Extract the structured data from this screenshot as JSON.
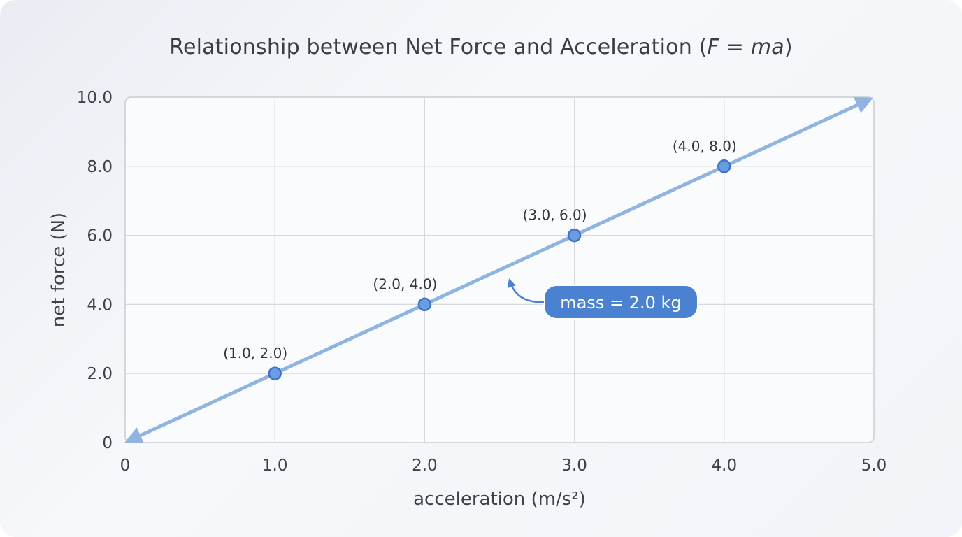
{
  "chart_data": {
    "type": "line",
    "title": {
      "prefix": "Relationship between Net Force and Acceleration (",
      "formula_lhs": "F",
      "formula_eq": " = ",
      "formula_rhs": "ma",
      "suffix": ")"
    },
    "xlabel": "acceleration (m/s²)",
    "ylabel": "net force (N)",
    "xlim": [
      0,
      5
    ],
    "ylim": [
      0,
      10
    ],
    "x_ticks": [
      {
        "v": 0,
        "label": "0"
      },
      {
        "v": 1,
        "label": "1.0"
      },
      {
        "v": 2,
        "label": "2.0"
      },
      {
        "v": 3,
        "label": "3.0"
      },
      {
        "v": 4,
        "label": "4.0"
      },
      {
        "v": 5,
        "label": "5.0"
      }
    ],
    "y_ticks": [
      {
        "v": 0,
        "label": "0"
      },
      {
        "v": 2,
        "label": "2.0"
      },
      {
        "v": 4,
        "label": "4.0"
      },
      {
        "v": 6,
        "label": "6.0"
      },
      {
        "v": 8,
        "label": "8.0"
      },
      {
        "v": 10,
        "label": "10.0"
      }
    ],
    "grid": true,
    "line": {
      "x": [
        0,
        5
      ],
      "y": [
        0,
        10
      ]
    },
    "points": [
      {
        "x": 1.0,
        "y": 2.0,
        "label": "(1.0, 2.0)"
      },
      {
        "x": 2.0,
        "y": 4.0,
        "label": "(2.0, 4.0)"
      },
      {
        "x": 3.0,
        "y": 6.0,
        "label": "(3.0, 6.0)"
      },
      {
        "x": 4.0,
        "y": 8.0,
        "label": "(4.0, 8.0)"
      }
    ],
    "annotation": {
      "text": "mass = 2.0 kg",
      "points_to": {
        "x": 2.55,
        "y": 4.8
      }
    },
    "colors": {
      "line": "#8fb4e0",
      "marker_fill": "#6b9be0",
      "marker_stroke": "#3f74c8",
      "callout": "#4a82d1",
      "grid": "#d6d9de",
      "plot_border": "#c9ccd2"
    }
  }
}
